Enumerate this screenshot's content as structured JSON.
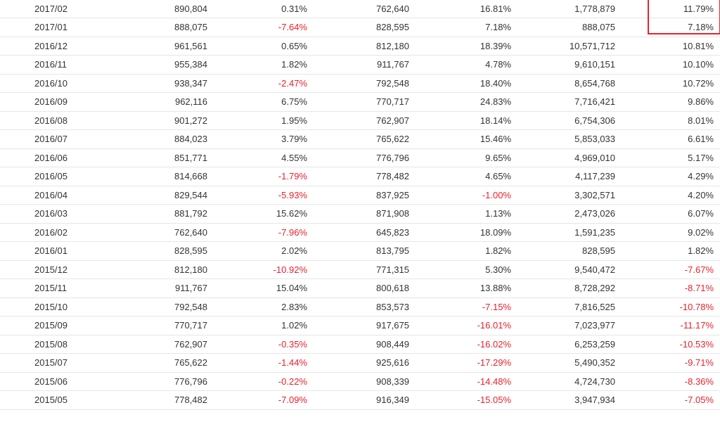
{
  "table": {
    "rows": [
      {
        "period": "2017/02",
        "v1": "890,804",
        "p1": "0.31%",
        "v2": "762,640",
        "p2": "16.81%",
        "v3": "1,778,879",
        "p3": "11.79%"
      },
      {
        "period": "2017/01",
        "v1": "888,075",
        "p1": "-7.64%",
        "v2": "828,595",
        "p2": "7.18%",
        "v3": "888,075",
        "p3": "7.18%"
      },
      {
        "period": "2016/12",
        "v1": "961,561",
        "p1": "0.65%",
        "v2": "812,180",
        "p2": "18.39%",
        "v3": "10,571,712",
        "p3": "10.81%"
      },
      {
        "period": "2016/11",
        "v1": "955,384",
        "p1": "1.82%",
        "v2": "911,767",
        "p2": "4.78%",
        "v3": "9,610,151",
        "p3": "10.10%"
      },
      {
        "period": "2016/10",
        "v1": "938,347",
        "p1": "-2.47%",
        "v2": "792,548",
        "p2": "18.40%",
        "v3": "8,654,768",
        "p3": "10.72%"
      },
      {
        "period": "2016/09",
        "v1": "962,116",
        "p1": "6.75%",
        "v2": "770,717",
        "p2": "24.83%",
        "v3": "7,716,421",
        "p3": "9.86%"
      },
      {
        "period": "2016/08",
        "v1": "901,272",
        "p1": "1.95%",
        "v2": "762,907",
        "p2": "18.14%",
        "v3": "6,754,306",
        "p3": "8.01%"
      },
      {
        "period": "2016/07",
        "v1": "884,023",
        "p1": "3.79%",
        "v2": "765,622",
        "p2": "15.46%",
        "v3": "5,853,033",
        "p3": "6.61%"
      },
      {
        "period": "2016/06",
        "v1": "851,771",
        "p1": "4.55%",
        "v2": "776,796",
        "p2": "9.65%",
        "v3": "4,969,010",
        "p3": "5.17%"
      },
      {
        "period": "2016/05",
        "v1": "814,668",
        "p1": "-1.79%",
        "v2": "778,482",
        "p2": "4.65%",
        "v3": "4,117,239",
        "p3": "4.29%"
      },
      {
        "period": "2016/04",
        "v1": "829,544",
        "p1": "-5.93%",
        "v2": "837,925",
        "p2": "-1.00%",
        "v3": "3,302,571",
        "p3": "4.20%"
      },
      {
        "period": "2016/03",
        "v1": "881,792",
        "p1": "15.62%",
        "v2": "871,908",
        "p2": "1.13%",
        "v3": "2,473,026",
        "p3": "6.07%"
      },
      {
        "period": "2016/02",
        "v1": "762,640",
        "p1": "-7.96%",
        "v2": "645,823",
        "p2": "18.09%",
        "v3": "1,591,235",
        "p3": "9.02%"
      },
      {
        "period": "2016/01",
        "v1": "828,595",
        "p1": "2.02%",
        "v2": "813,795",
        "p2": "1.82%",
        "v3": "828,595",
        "p3": "1.82%"
      },
      {
        "period": "2015/12",
        "v1": "812,180",
        "p1": "-10.92%",
        "v2": "771,315",
        "p2": "5.30%",
        "v3": "9,540,472",
        "p3": "-7.67%"
      },
      {
        "period": "2015/11",
        "v1": "911,767",
        "p1": "15.04%",
        "v2": "800,618",
        "p2": "13.88%",
        "v3": "8,728,292",
        "p3": "-8.71%"
      },
      {
        "period": "2015/10",
        "v1": "792,548",
        "p1": "2.83%",
        "v2": "853,573",
        "p2": "-7.15%",
        "v3": "7,816,525",
        "p3": "-10.78%"
      },
      {
        "period": "2015/09",
        "v1": "770,717",
        "p1": "1.02%",
        "v2": "917,675",
        "p2": "-16.01%",
        "v3": "7,023,977",
        "p3": "-11.17%"
      },
      {
        "period": "2015/08",
        "v1": "762,907",
        "p1": "-0.35%",
        "v2": "908,449",
        "p2": "-16.02%",
        "v3": "6,253,259",
        "p3": "-10.53%"
      },
      {
        "period": "2015/07",
        "v1": "765,622",
        "p1": "-1.44%",
        "v2": "925,616",
        "p2": "-17.29%",
        "v3": "5,490,352",
        "p3": "-9.71%"
      },
      {
        "period": "2015/06",
        "v1": "776,796",
        "p1": "-0.22%",
        "v2": "908,339",
        "p2": "-14.48%",
        "v3": "4,724,730",
        "p3": "-8.36%"
      },
      {
        "period": "2015/05",
        "v1": "778,482",
        "p1": "-7.09%",
        "v2": "916,349",
        "p2": "-15.05%",
        "v3": "3,947,934",
        "p3": "-7.05%"
      }
    ]
  },
  "colors": {
    "negative": "#e8222b",
    "text": "#333333",
    "row_border": "#e6e6e6",
    "highlight_box": "#e8222b"
  }
}
